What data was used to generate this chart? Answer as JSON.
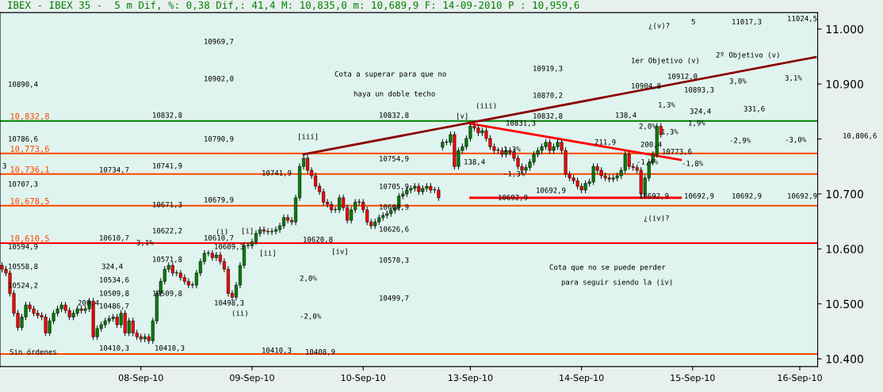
{
  "chart_data": {
    "type": "candlestick",
    "title": "IBEX - IBEX 35 -  5 m Dif, %: 0,38 Dif,: 41,4 M: 10,835,0 m: 10,689,9 F: 14-09-2010 P : 10,959,6",
    "categories": [
      null,
      null,
      null,
      null,
      null,
      null,
      null,
      null,
      null,
      null,
      null,
      null,
      null,
      null,
      null,
      null,
      null,
      null,
      null,
      null,
      null,
      null,
      null,
      null,
      null,
      null,
      null,
      null,
      null,
      null,
      null,
      null,
      null,
      null,
      null,
      "08-Sep-10",
      null,
      null,
      null,
      null,
      null,
      null,
      null,
      null,
      null,
      null,
      null,
      null,
      null,
      null,
      null,
      null,
      null,
      null,
      null,
      null,
      null,
      null,
      null,
      null,
      null,
      null,
      null,
      "09-Sep-10",
      null,
      null,
      null,
      null,
      null,
      null,
      null,
      null,
      null,
      null,
      null,
      null,
      null,
      null,
      null,
      null,
      null,
      null,
      null,
      null,
      null,
      null,
      null,
      null,
      null,
      null,
      null,
      "10-Sep-10",
      null,
      null,
      null,
      null,
      null,
      null,
      null,
      null,
      null,
      null,
      null,
      null,
      null,
      null,
      null,
      null,
      null,
      null,
      null,
      null,
      null,
      null,
      null,
      null,
      null,
      null,
      "13-Sep-10",
      null,
      null,
      null,
      null,
      null,
      null,
      null,
      null,
      null,
      null,
      null,
      null,
      null,
      null,
      null,
      null,
      null,
      null,
      null,
      null,
      null,
      null,
      null,
      null,
      null,
      null,
      null,
      "14-Sep-10",
      null,
      null,
      null,
      null,
      null,
      null,
      null,
      null,
      null,
      null,
      null,
      null,
      null,
      null,
      null,
      null,
      null,
      null,
      null,
      null,
      null,
      null,
      null,
      null,
      null,
      null,
      null,
      "15-Sep-10",
      null,
      null,
      null,
      null,
      null,
      null,
      null,
      null,
      null,
      null,
      null,
      null,
      null,
      null,
      null,
      null,
      null,
      null,
      null,
      null,
      null,
      null,
      null,
      null,
      null,
      null,
      "16-Sep-10",
      null,
      null,
      null,
      null
    ],
    "ohlc": [
      [
        10570,
        10575,
        10558,
        10563
      ],
      [
        10563,
        10568,
        10551,
        10556
      ],
      [
        10556,
        10561,
        10514,
        10519
      ],
      [
        10519,
        10524,
        10478,
        10483
      ],
      [
        10483,
        10488,
        10452,
        10457
      ],
      [
        10457,
        10481,
        10452,
        10476
      ],
      [
        10476,
        10503,
        10471,
        10498
      ],
      [
        10498,
        10503,
        10486,
        10491
      ],
      [
        10491,
        10496,
        10478,
        10483
      ],
      [
        10483,
        10488,
        10474,
        10479
      ],
      [
        10479,
        10484,
        10471,
        10476
      ],
      [
        10476,
        10481,
        10442,
        10447
      ],
      [
        10447,
        10474,
        10442,
        10469
      ],
      [
        10469,
        10488,
        10464,
        10483
      ],
      [
        10483,
        10496,
        10478,
        10491
      ],
      [
        10491,
        10503,
        10486,
        10498
      ],
      [
        10498,
        10503,
        10483,
        10488
      ],
      [
        10488,
        10493,
        10471,
        10476
      ],
      [
        10476,
        10488,
        10471,
        10483
      ],
      [
        10483,
        10496,
        10478,
        10491
      ],
      [
        10491,
        10496,
        10483,
        10488
      ],
      [
        10488,
        10496,
        10483,
        10491
      ],
      [
        10491,
        10510,
        10486,
        10505
      ],
      [
        10505,
        10510,
        10435,
        10440
      ],
      [
        10440,
        10460,
        10435,
        10455
      ],
      [
        10455,
        10467,
        10450,
        10462
      ],
      [
        10462,
        10474,
        10457,
        10469
      ],
      [
        10469,
        10478,
        10464,
        10473
      ],
      [
        10473,
        10481,
        10468,
        10476
      ],
      [
        10476,
        10481,
        10457,
        10462
      ],
      [
        10462,
        10488,
        10457,
        10483
      ],
      [
        10483,
        10488,
        10442,
        10447
      ],
      [
        10447,
        10474,
        10442,
        10469
      ],
      [
        10469,
        10474,
        10442,
        10447
      ],
      [
        10447,
        10452,
        10435,
        10440
      ],
      [
        10440,
        10445,
        10431,
        10436
      ],
      [
        10436,
        10445,
        10431,
        10440
      ],
      [
        10440,
        10445,
        10428,
        10433
      ],
      [
        10433,
        10474,
        10428,
        10469
      ],
      [
        10469,
        10524,
        10464,
        10519
      ],
      [
        10519,
        10546,
        10514,
        10541
      ],
      [
        10541,
        10568,
        10536,
        10563
      ],
      [
        10563,
        10575,
        10558,
        10570
      ],
      [
        10570,
        10575,
        10551,
        10556
      ],
      [
        10556,
        10561,
        10551,
        10556
      ],
      [
        10556,
        10561,
        10543,
        10548
      ],
      [
        10548,
        10553,
        10536,
        10541
      ],
      [
        10541,
        10546,
        10529,
        10534
      ],
      [
        10534,
        10539,
        10529,
        10534
      ],
      [
        10534,
        10561,
        10529,
        10556
      ],
      [
        10556,
        10582,
        10551,
        10577
      ],
      [
        10577,
        10597,
        10572,
        10592
      ],
      [
        10592,
        10597,
        10587,
        10592
      ],
      [
        10592,
        10597,
        10579,
        10584
      ],
      [
        10584,
        10594,
        10579,
        10589
      ],
      [
        10589,
        10594,
        10572,
        10577
      ],
      [
        10577,
        10582,
        10558,
        10563
      ],
      [
        10563,
        10568,
        10514,
        10519
      ],
      [
        10519,
        10524,
        10507,
        10512
      ],
      [
        10512,
        10539,
        10507,
        10534
      ],
      [
        10534,
        10575,
        10529,
        10570
      ],
      [
        10570,
        10611,
        10565,
        10606
      ],
      [
        10606,
        10611,
        10601,
        10606
      ],
      [
        10606,
        10618,
        10601,
        10613
      ],
      [
        10613,
        10633,
        10608,
        10628
      ],
      [
        10628,
        10640,
        10623,
        10635
      ],
      [
        10635,
        10640,
        10627,
        10632
      ],
      [
        10632,
        10637,
        10626,
        10631
      ],
      [
        10631,
        10637,
        10626,
        10632
      ],
      [
        10632,
        10640,
        10627,
        10635
      ],
      [
        10635,
        10647,
        10630,
        10642
      ],
      [
        10642,
        10662,
        10637,
        10657
      ],
      [
        10657,
        10662,
        10647,
        10652
      ],
      [
        10652,
        10657,
        10644,
        10649
      ],
      [
        10649,
        10698,
        10644,
        10693
      ],
      [
        10693,
        10755,
        10688,
        10750
      ],
      [
        10750,
        10770,
        10745,
        10765
      ],
      [
        10765,
        10770,
        10738,
        10743
      ],
      [
        10743,
        10748,
        10728,
        10733
      ],
      [
        10733,
        10738,
        10709,
        10714
      ],
      [
        10714,
        10719,
        10699,
        10704
      ],
      [
        10704,
        10709,
        10680,
        10685
      ],
      [
        10685,
        10690,
        10676,
        10681
      ],
      [
        10681,
        10686,
        10666,
        10671
      ],
      [
        10671,
        10676,
        10666,
        10671
      ],
      [
        10671,
        10698,
        10666,
        10693
      ],
      [
        10693,
        10698,
        10670,
        10675
      ],
      [
        10675,
        10680,
        10647,
        10652
      ],
      [
        10652,
        10676,
        10647,
        10671
      ],
      [
        10671,
        10690,
        10666,
        10685
      ],
      [
        10685,
        10690,
        10680,
        10685
      ],
      [
        10685,
        10690,
        10666,
        10671
      ],
      [
        10671,
        10676,
        10644,
        10649
      ],
      [
        10649,
        10654,
        10637,
        10642
      ],
      [
        10642,
        10654,
        10637,
        10649
      ],
      [
        10649,
        10662,
        10644,
        10657
      ],
      [
        10657,
        10666,
        10652,
        10661
      ],
      [
        10661,
        10669,
        10656,
        10664
      ],
      [
        10664,
        10675,
        10659,
        10670
      ],
      [
        10670,
        10680,
        10665,
        10675
      ],
      [
        10675,
        10701,
        10670,
        10696
      ],
      [
        10696,
        10705,
        10691,
        10700
      ],
      [
        10700,
        10712,
        10695,
        10707
      ],
      [
        10707,
        10715,
        10702,
        10710
      ],
      [
        10710,
        10719,
        10705,
        10714
      ],
      [
        10714,
        10719,
        10699,
        10704
      ],
      [
        10704,
        10715,
        10699,
        10710
      ],
      [
        10710,
        10719,
        10705,
        10714
      ],
      [
        10714,
        10719,
        10702,
        10707
      ],
      [
        10707,
        10712,
        10702,
        10707
      ],
      [
        10707,
        10712,
        10688,
        10693
      ],
      [
        10785,
        10799,
        10780,
        10794
      ],
      [
        10794,
        10799,
        10789,
        10794
      ],
      [
        10794,
        10813,
        10789,
        10808
      ],
      [
        10808,
        10813,
        10745,
        10750
      ],
      [
        10750,
        10784,
        10745,
        10779
      ],
      [
        10779,
        10791,
        10774,
        10786
      ],
      [
        10786,
        10806,
        10781,
        10801
      ],
      [
        10801,
        10828,
        10796,
        10823
      ],
      [
        10823,
        10828,
        10815,
        10820
      ],
      [
        10820,
        10825,
        10806,
        10811
      ],
      [
        10811,
        10820,
        10806,
        10815
      ],
      [
        10815,
        10820,
        10796,
        10801
      ],
      [
        10801,
        10806,
        10781,
        10786
      ],
      [
        10786,
        10791,
        10774,
        10779
      ],
      [
        10779,
        10784,
        10774,
        10779
      ],
      [
        10779,
        10784,
        10767,
        10772
      ],
      [
        10772,
        10784,
        10767,
        10779
      ],
      [
        10779,
        10784,
        10771,
        10776
      ],
      [
        10776,
        10781,
        10760,
        10765
      ],
      [
        10765,
        10770,
        10745,
        10750
      ],
      [
        10750,
        10755,
        10738,
        10743
      ],
      [
        10743,
        10753,
        10738,
        10748
      ],
      [
        10748,
        10763,
        10743,
        10758
      ],
      [
        10758,
        10777,
        10753,
        10772
      ],
      [
        10772,
        10784,
        10767,
        10779
      ],
      [
        10779,
        10791,
        10774,
        10786
      ],
      [
        10786,
        10799,
        10781,
        10794
      ],
      [
        10794,
        10799,
        10774,
        10779
      ],
      [
        10779,
        10791,
        10774,
        10786
      ],
      [
        10786,
        10799,
        10781,
        10794
      ],
      [
        10794,
        10799,
        10774,
        10779
      ],
      [
        10779,
        10784,
        10731,
        10736
      ],
      [
        10736,
        10741,
        10724,
        10729
      ],
      [
        10729,
        10734,
        10719,
        10724
      ],
      [
        10724,
        10729,
        10709,
        10714
      ],
      [
        10714,
        10719,
        10702,
        10707
      ],
      [
        10707,
        10724,
        10702,
        10719
      ],
      [
        10719,
        10727,
        10714,
        10722
      ],
      [
        10722,
        10755,
        10717,
        10750
      ],
      [
        10750,
        10755,
        10738,
        10743
      ],
      [
        10743,
        10748,
        10728,
        10733
      ],
      [
        10733,
        10738,
        10724,
        10729
      ],
      [
        10729,
        10734,
        10722,
        10727
      ],
      [
        10727,
        10734,
        10722,
        10729
      ],
      [
        10729,
        10738,
        10724,
        10733
      ],
      [
        10733,
        10748,
        10728,
        10743
      ],
      [
        10743,
        10777,
        10738,
        10772
      ],
      [
        10772,
        10777,
        10745,
        10750
      ],
      [
        10750,
        10755,
        10743,
        10748
      ],
      [
        10748,
        10753,
        10738,
        10743
      ],
      [
        10743,
        10748,
        10695,
        10700
      ],
      [
        10700,
        10734,
        10695,
        10729
      ],
      [
        10729,
        10763,
        10724,
        10758
      ],
      [
        10758,
        10777,
        10753,
        10772
      ],
      [
        10772,
        10828,
        10767,
        10823
      ],
      [
        10823,
        10828,
        10803,
        10808
      ],
      null,
      null,
      null,
      null,
      null,
      null,
      null,
      null,
      null,
      null,
      null,
      null,
      null,
      null,
      null,
      null,
      null,
      null,
      null,
      null,
      null,
      null,
      null,
      null,
      null,
      null,
      null,
      null,
      null,
      null,
      null,
      null,
      null,
      null,
      null,
      null,
      null,
      null,
      null
    ],
    "series": [
      {
        "type": "line",
        "color": "#8b0000",
        "values": [
          null,
          null,
          null,
          null,
          null,
          null,
          null,
          null,
          null,
          null,
          null,
          null,
          null,
          null,
          null,
          null,
          null,
          null,
          null,
          null,
          null,
          null,
          null,
          null,
          null,
          null,
          null,
          null,
          null,
          null,
          null,
          null,
          null,
          null,
          null,
          null,
          null,
          null,
          null,
          null,
          null,
          null,
          null,
          null,
          null,
          null,
          null,
          null,
          null,
          null,
          null,
          null,
          null,
          null,
          null,
          null,
          null,
          null,
          null,
          null,
          null,
          null,
          null,
          null,
          null,
          null,
          null,
          null,
          null,
          null,
          null,
          null,
          null,
          null,
          null,
          null,
          10772,
          null,
          null,
          null,
          null,
          null,
          null,
          null,
          null,
          null,
          null,
          null,
          null,
          null,
          null,
          null,
          null,
          null,
          null,
          null,
          null,
          null,
          null,
          null,
          null,
          null,
          null,
          null,
          null,
          null,
          null,
          null,
          null,
          null,
          null,
          null,
          null,
          null,
          null,
          null,
          null,
          null,
          null,
          null,
          null,
          null,
          null,
          null,
          null,
          null,
          null,
          null,
          null,
          null,
          null,
          null,
          null,
          null,
          null,
          null,
          null,
          null,
          null,
          null,
          null,
          null,
          null,
          null,
          null,
          null,
          null,
          null,
          null,
          null,
          null,
          null,
          null,
          null,
          null,
          null,
          null,
          null,
          null,
          null,
          null,
          null,
          null,
          null,
          null,
          null,
          null,
          null,
          null,
          null,
          null,
          null,
          null,
          null,
          null,
          null,
          null,
          null,
          null,
          null,
          null,
          null,
          null,
          null,
          null,
          null,
          null,
          null,
          null,
          null,
          null,
          null,
          null,
          null,
          null,
          null,
          null,
          null,
          null,
          null,
          null,
          null,
          null,
          null,
          null,
          10949
        ]
      },
      {
        "type": "line",
        "color": "#ff0000",
        "values": [
          null,
          null,
          null,
          null,
          null,
          null,
          null,
          null,
          null,
          null,
          null,
          null,
          null,
          null,
          null,
          null,
          null,
          null,
          null,
          null,
          null,
          null,
          null,
          null,
          null,
          null,
          null,
          null,
          null,
          null,
          null,
          null,
          null,
          null,
          null,
          null,
          null,
          null,
          null,
          null,
          null,
          null,
          null,
          null,
          null,
          null,
          null,
          null,
          null,
          null,
          null,
          null,
          null,
          null,
          null,
          null,
          null,
          null,
          null,
          null,
          null,
          null,
          null,
          null,
          null,
          null,
          null,
          null,
          null,
          null,
          null,
          null,
          null,
          null,
          null,
          null,
          null,
          null,
          null,
          null,
          null,
          null,
          null,
          null,
          null,
          null,
          null,
          null,
          null,
          null,
          null,
          null,
          null,
          null,
          null,
          null,
          null,
          null,
          null,
          null,
          null,
          null,
          null,
          null,
          null,
          null,
          null,
          null,
          null,
          null,
          null,
          null,
          null,
          null,
          null,
          null,
          null,
          null,
          10828,
          null,
          null,
          null,
          null,
          null,
          null,
          null,
          null,
          null,
          null,
          null,
          null,
          null,
          null,
          null,
          null,
          null,
          null,
          null,
          null,
          null,
          null,
          null,
          null,
          null,
          null,
          null,
          null,
          null,
          null,
          null,
          null,
          null,
          null,
          null,
          null,
          null,
          null,
          null,
          null,
          null,
          null,
          null,
          null,
          null,
          null,
          null,
          null,
          null,
          null,
          null,
          null,
          10762,
          null,
          null,
          null,
          null,
          null,
          null,
          null,
          null,
          null,
          null,
          null,
          null,
          null,
          null,
          null,
          null,
          null,
          null,
          null,
          null,
          null,
          null,
          null,
          null,
          null,
          null,
          null,
          null,
          null,
          null,
          null,
          null,
          null,
          null
        ]
      },
      {
        "type": "line",
        "color": "#ff0000",
        "values": [
          null,
          null,
          null,
          null,
          null,
          null,
          null,
          null,
          null,
          null,
          null,
          null,
          null,
          null,
          null,
          null,
          null,
          null,
          null,
          null,
          null,
          null,
          null,
          null,
          null,
          null,
          null,
          null,
          null,
          null,
          null,
          null,
          null,
          null,
          null,
          null,
          null,
          null,
          null,
          null,
          null,
          null,
          null,
          null,
          null,
          null,
          null,
          null,
          null,
          null,
          null,
          null,
          null,
          null,
          null,
          null,
          null,
          null,
          null,
          null,
          null,
          null,
          null,
          null,
          null,
          null,
          null,
          null,
          null,
          null,
          null,
          null,
          null,
          null,
          null,
          null,
          null,
          null,
          null,
          null,
          null,
          null,
          null,
          null,
          null,
          null,
          null,
          null,
          null,
          null,
          null,
          null,
          null,
          null,
          null,
          null,
          null,
          null,
          null,
          null,
          null,
          null,
          null,
          null,
          null,
          null,
          null,
          null,
          null,
          null,
          null,
          null,
          null,
          null,
          null,
          null,
          null,
          null,
          10693,
          null,
          null,
          null,
          null,
          null,
          null,
          null,
          null,
          null,
          null,
          null,
          null,
          null,
          null,
          null,
          null,
          null,
          null,
          null,
          null,
          null,
          null,
          null,
          null,
          null,
          null,
          null,
          null,
          null,
          null,
          null,
          null,
          null,
          null,
          null,
          null,
          null,
          null,
          null,
          null,
          null,
          null,
          null,
          null,
          null,
          null,
          null,
          null,
          null,
          null,
          null,
          null,
          10693,
          null,
          null,
          null,
          null,
          null,
          null,
          null,
          null,
          null,
          null,
          null,
          null,
          null,
          null,
          null,
          null,
          null,
          null,
          null,
          null,
          null,
          null,
          null,
          null,
          null,
          null,
          null,
          null,
          null,
          null,
          null,
          null,
          null,
          null
        ]
      }
    ],
    "ylim": [
      10386,
      11030
    ],
    "yticks": [
      {
        "value": 10400,
        "label": "10.400"
      },
      {
        "value": 10500,
        "label": "10.500"
      },
      {
        "value": 10600,
        "label": "10.600"
      },
      {
        "value": 10700,
        "label": "10.700"
      },
      {
        "value": 10800,
        "label": null
      },
      {
        "value": 10900,
        "label": "10.900"
      },
      {
        "value": 11000,
        "label": "11.000"
      }
    ],
    "ref_lines": [
      {
        "axis": "y",
        "value": 10832.8,
        "label": "10,832,8",
        "color": "#008000"
      },
      {
        "axis": "y",
        "value": 10773.6,
        "label": "10,773,6",
        "color": "#ff4500"
      },
      {
        "axis": "y",
        "value": 10736.1,
        "label": "10,736,1",
        "color": "#ff4500"
      },
      {
        "axis": "y",
        "value": 10678.5,
        "label": "10,678,5",
        "color": "#ff4500"
      },
      {
        "axis": "y",
        "value": 10610.5,
        "label": "10,610,5",
        "color": "#ff0000"
      },
      {
        "axis": "y",
        "value": 10408.9,
        "label": null,
        "color": "#ff4500"
      }
    ],
    "annotations": [
      "10890,4",
      "10786,6",
      "10707,3",
      "10594,9",
      "10558,8",
      "10524,2",
      "3",
      "Sin órdenes",
      "10734,7",
      "10610,7",
      "10534,6",
      "10509,8",
      "10486,7",
      "10410,3",
      "324,4",
      "200,4",
      "3,1%",
      "10832,8",
      "10741,9",
      "10671,3",
      "10622,2",
      "10571,8",
      "10509,8",
      "10410,3",
      "10969,7",
      "10902,0",
      "10790,9",
      "10679,9",
      "10610,7",
      "10609,3",
      "10498,3",
      "10741,9",
      "10410,3",
      "10620,8",
      "10408,9",
      "2,0%",
      "-2,0%",
      "(i)",
      "[i]",
      "[ii]",
      "(ii)",
      "[iii]",
      "[iv]",
      "10832,8",
      "10754,9",
      "10705,9",
      "10660,9",
      "10626,6",
      "10570,3",
      "10499,7",
      "Cota a superar para que no",
      "haya un doble techo",
      "(iii)",
      "[v]",
      "10831,3",
      "138,4",
      "1,3%",
      "-1,3%",
      "10692,9",
      "10919,3",
      "10870,2",
      "10832,8",
      "10692,9",
      "211,9",
      "138,4",
      "2,0%",
      "10904,8",
      "10912,0",
      "1,3%",
      "1,3%",
      "200,4",
      "-1,4%",
      "10773,6",
      "10893,3",
      "324,4",
      "1,9%",
      "-1,8%",
      "10692,9",
      "10692,9",
      "10692,9",
      "10692,9",
      "3,0%",
      "-2,9%",
      "331,6",
      "3,1%",
      "-3,0%",
      "11017,3",
      "11024,5",
      "1er Objetivo (v)",
      "2º Objetivo (v)",
      "¿(v)?",
      "5",
      "¿(iv)?",
      "Cota que no se puede perder",
      "para seguir siendo la (iv)",
      "10,806,6"
    ]
  }
}
